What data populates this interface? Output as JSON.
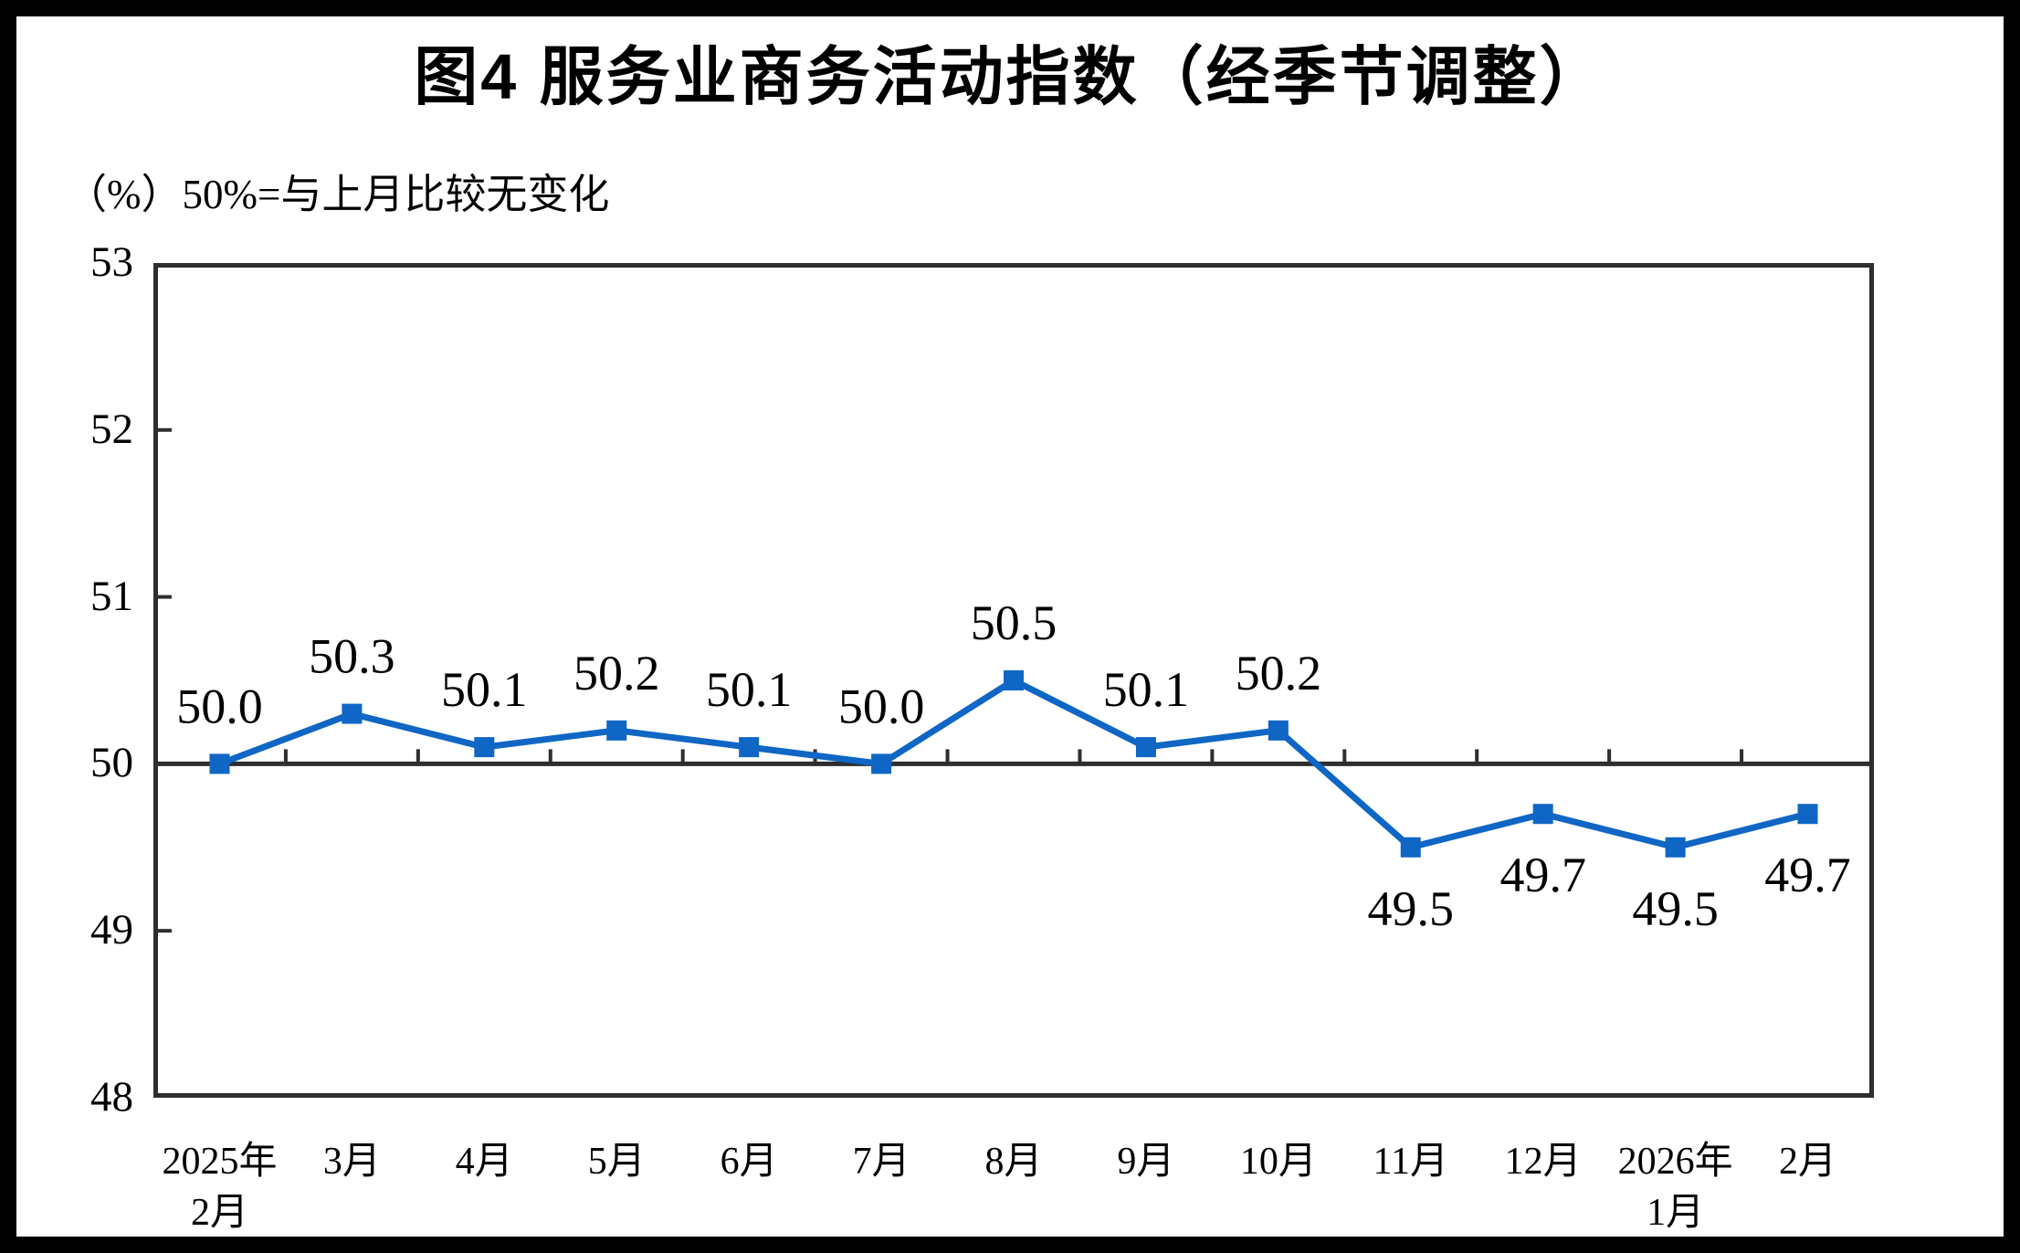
{
  "figure": {
    "title": "图4  服务业商务活动指数（经季节调整）",
    "unit_note": "（%）50%=与上月比较无变化"
  },
  "chart_data": {
    "type": "line",
    "title": "图4  服务业商务活动指数（经季节调整）",
    "subtitle": "（%）50%=与上月比较无变化",
    "categories": [
      "2025年\n2月",
      "3月",
      "4月",
      "5月",
      "6月",
      "7月",
      "8月",
      "9月",
      "10月",
      "11月",
      "12月",
      "2026年\n1月",
      "2月"
    ],
    "series": [
      {
        "name": "服务业商务活动指数",
        "values": [
          50.0,
          50.3,
          50.1,
          50.2,
          50.1,
          50.0,
          50.5,
          50.1,
          50.2,
          49.5,
          49.7,
          49.5,
          49.7
        ]
      }
    ],
    "data_labels": [
      "50.0",
      "50.3",
      "50.1",
      "50.2",
      "50.1",
      "50.0",
      "50.5",
      "50.1",
      "50.2",
      "49.5",
      "49.7",
      "49.5",
      "49.7"
    ],
    "ylim": [
      48,
      53
    ],
    "y_ticks": [
      53,
      52,
      51,
      50,
      49,
      48
    ],
    "baseline_value": 50,
    "xlabel": "",
    "ylabel": "",
    "grid": false,
    "legend": false,
    "marker": "square",
    "line_color": "#0F66C4",
    "axis_color": "#2E2E2E",
    "label_color": "#000000",
    "frame_color": "#000000"
  }
}
